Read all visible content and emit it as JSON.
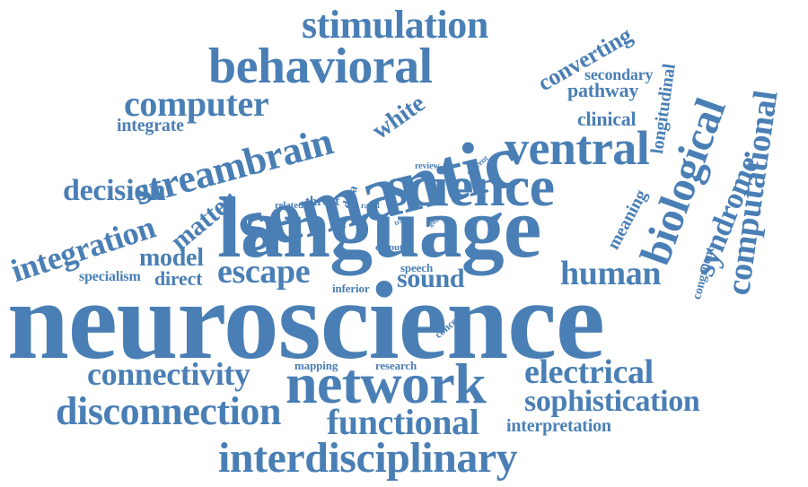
{
  "colors": {
    "text": "#4a7fb5",
    "background": "#ffffff"
  },
  "words": [
    "neuroscience",
    "language",
    "semantic",
    "science",
    "network",
    "behavioral",
    "ventral",
    "stimulation",
    "streambrain",
    "computer",
    "interdisciplinary",
    "disconnection",
    "functional",
    "connectivity",
    "electrical",
    "sophistication",
    "biological",
    "computational",
    "syndrome",
    "human",
    "escape",
    "integration",
    "decision",
    "matter",
    "model",
    "sound",
    "white",
    "converting",
    "longitudinal",
    "secondary",
    "pathway",
    "clinical",
    "integrate",
    "meaning",
    "specialism",
    "direct",
    "interpretation",
    "congruent",
    "threat",
    "related",
    "data",
    "speech",
    "inferior",
    "concept",
    "mapping",
    "research",
    "review",
    "current",
    "output",
    "rapid",
    "tract",
    "goal"
  ]
}
